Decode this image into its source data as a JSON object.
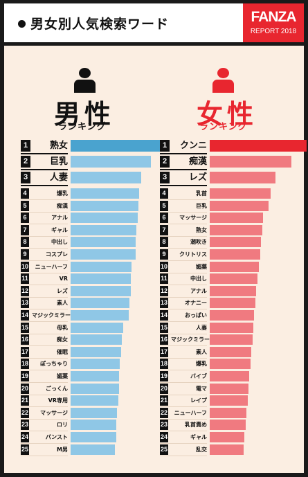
{
  "header": {
    "title": "男女別人気検索ワード",
    "brand": "FANZA",
    "brand_sub": "REPORT 2018"
  },
  "colors": {
    "male_bar_top": "#4aa3cf",
    "male_bar": "#8fc7e6",
    "female_bar_top": "#e8262f",
    "female_bar": "#f07a80",
    "male_title": "#111111",
    "female_title": "#e8262f",
    "brand": "#e8262f"
  },
  "male": {
    "title": "男性",
    "subtitle": "ランキング",
    "icon": "male-person-icon"
  },
  "female": {
    "title": "女性",
    "subtitle": "ランキング",
    "icon": "female-person-icon"
  },
  "chart_data": [
    {
      "type": "bar",
      "title": "男性",
      "subtitle": "ランキング",
      "ranks": [
        1,
        2,
        3,
        4,
        5,
        6,
        7,
        8,
        9,
        10,
        11,
        12,
        13,
        14,
        15,
        16,
        17,
        18,
        19,
        20,
        21,
        22,
        23,
        24,
        25
      ],
      "categories": [
        "熟女",
        "巨乳",
        "人妻",
        "爆乳",
        "痴漢",
        "アナル",
        "ギャル",
        "中出し",
        "コスプレ",
        "ニューハーフ",
        "VR",
        "レズ",
        "素人",
        "マジックミラー号",
        "母乳",
        "痴女",
        "催眠",
        "ぽっちゃり",
        "媚薬",
        "ごっくん",
        "VR専用",
        "マッサージ",
        "ロリ",
        "パンスト",
        "M男"
      ],
      "values": [
        100,
        83,
        73,
        71,
        70,
        69,
        68,
        67,
        67,
        63,
        62,
        62,
        61,
        60,
        54,
        53,
        52,
        51,
        50,
        50,
        49,
        48,
        47,
        47,
        46
      ]
    },
    {
      "type": "bar",
      "title": "女性",
      "subtitle": "ランキング",
      "ranks": [
        1,
        2,
        3,
        4,
        5,
        6,
        7,
        8,
        9,
        10,
        11,
        12,
        13,
        14,
        15,
        16,
        17,
        18,
        19,
        20,
        21,
        22,
        23,
        24,
        25
      ],
      "categories": [
        "クンニ",
        "痴漢",
        "レズ",
        "乳首",
        "巨乳",
        "マッサージ",
        "熟女",
        "潮吹き",
        "クリトリス",
        "媚薬",
        "中出し",
        "アナル",
        "オナニー",
        "おっぱい",
        "人妻",
        "マジックミラー号",
        "素人",
        "爆乳",
        "バイブ",
        "電マ",
        "レイプ",
        "ニューハーフ",
        "乳首責め",
        "ギャル",
        "乱交"
      ],
      "values": [
        100,
        84,
        68,
        63,
        61,
        55,
        54,
        53,
        52,
        51,
        49,
        48,
        47,
        46,
        45,
        44,
        43,
        42,
        41,
        40,
        39,
        38,
        37,
        36,
        35
      ]
    }
  ]
}
